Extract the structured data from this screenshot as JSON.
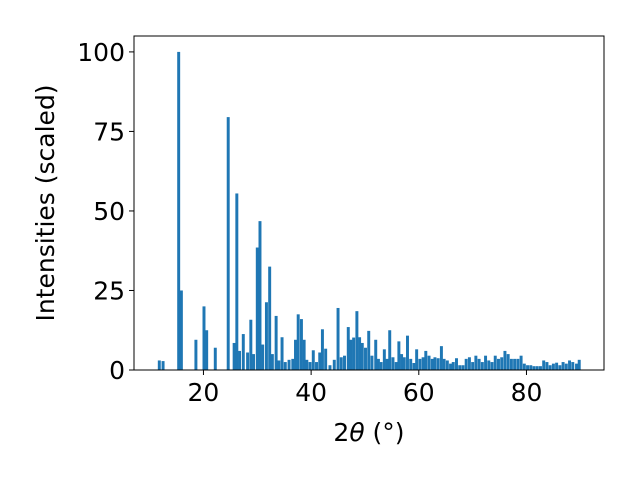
{
  "chart_data": {
    "type": "bar",
    "title": "",
    "xlabel_prefix": "2",
    "xlabel_symbol": "θ",
    "xlabel_unit": " (°)",
    "ylabel": "Intensities (scaled)",
    "xlim": [
      7.1,
      94.4
    ],
    "ylim": [
      0,
      105
    ],
    "xticks": [
      20,
      40,
      60,
      80
    ],
    "yticks": [
      0,
      25,
      50,
      75,
      100
    ],
    "bar_width": 0.55,
    "bar_color": "#1f77b4",
    "grid": false,
    "legend": "none",
    "points": [
      [
        11.8,
        3
      ],
      [
        12.5,
        2.8
      ],
      [
        15.4,
        100
      ],
      [
        15.9,
        25
      ],
      [
        18.6,
        9.5
      ],
      [
        20.1,
        20
      ],
      [
        20.6,
        12.5
      ],
      [
        22.2,
        7
      ],
      [
        24.6,
        79.5
      ],
      [
        25.7,
        8.5
      ],
      [
        26.2,
        55.5
      ],
      [
        26.7,
        6
      ],
      [
        27.4,
        11.3
      ],
      [
        28.2,
        5.5
      ],
      [
        28.8,
        15.8
      ],
      [
        29.3,
        5
      ],
      [
        30.0,
        38.5
      ],
      [
        30.5,
        46.8
      ],
      [
        31.0,
        8
      ],
      [
        31.7,
        21.3
      ],
      [
        32.3,
        32.5
      ],
      [
        32.8,
        5
      ],
      [
        33.5,
        17
      ],
      [
        34.0,
        3
      ],
      [
        34.6,
        10.3
      ],
      [
        35.2,
        2.5
      ],
      [
        35.9,
        3.2
      ],
      [
        36.6,
        3.5
      ],
      [
        37.1,
        9.5
      ],
      [
        37.6,
        17.5
      ],
      [
        38.2,
        16
      ],
      [
        38.7,
        9.5
      ],
      [
        39.2,
        3.2
      ],
      [
        39.8,
        2.5
      ],
      [
        40.4,
        6.2
      ],
      [
        41.0,
        2.5
      ],
      [
        41.6,
        5.5
      ],
      [
        42.1,
        12.8
      ],
      [
        42.7,
        6.7
      ],
      [
        43.5,
        1.5
      ],
      [
        44.3,
        3.2
      ],
      [
        45.0,
        19.5
      ],
      [
        45.6,
        4
      ],
      [
        46.2,
        4.5
      ],
      [
        46.9,
        13.5
      ],
      [
        47.4,
        9.5
      ],
      [
        47.9,
        10.2
      ],
      [
        48.5,
        18.5
      ],
      [
        49.0,
        10.3
      ],
      [
        49.5,
        8.5
      ],
      [
        50.1,
        7
      ],
      [
        50.7,
        12.3
      ],
      [
        51.3,
        4.5
      ],
      [
        52.0,
        9.5
      ],
      [
        52.5,
        3.5
      ],
      [
        53.0,
        2.5
      ],
      [
        53.6,
        6.5
      ],
      [
        54.1,
        3.5
      ],
      [
        54.6,
        12.5
      ],
      [
        55.2,
        4
      ],
      [
        55.8,
        2.5
      ],
      [
        56.3,
        9
      ],
      [
        56.8,
        5
      ],
      [
        57.3,
        4
      ],
      [
        57.9,
        10.8
      ],
      [
        58.5,
        3.5
      ],
      [
        59.1,
        2.2
      ],
      [
        59.6,
        6.5
      ],
      [
        60.2,
        3.5
      ],
      [
        60.8,
        4
      ],
      [
        61.3,
        6
      ],
      [
        61.9,
        4.5
      ],
      [
        62.5,
        3.5
      ],
      [
        63.0,
        4
      ],
      [
        63.6,
        3.7
      ],
      [
        64.2,
        7.5
      ],
      [
        64.7,
        3.5
      ],
      [
        65.3,
        3
      ],
      [
        65.9,
        2
      ],
      [
        66.4,
        2.5
      ],
      [
        67.0,
        3.7
      ],
      [
        67.6,
        1.5
      ],
      [
        68.2,
        1.5
      ],
      [
        68.8,
        3.5
      ],
      [
        69.4,
        4
      ],
      [
        70.0,
        2.5
      ],
      [
        70.6,
        4.5
      ],
      [
        71.2,
        3.5
      ],
      [
        71.8,
        2.5
      ],
      [
        72.4,
        4.5
      ],
      [
        73.0,
        3
      ],
      [
        73.6,
        2.5
      ],
      [
        74.2,
        4.5
      ],
      [
        74.8,
        3.5
      ],
      [
        75.4,
        4
      ],
      [
        76.0,
        6
      ],
      [
        76.6,
        5
      ],
      [
        77.2,
        3.5
      ],
      [
        77.8,
        3.5
      ],
      [
        78.4,
        3.5
      ],
      [
        79.0,
        4.5
      ],
      [
        79.6,
        2
      ],
      [
        80.2,
        1.5
      ],
      [
        80.8,
        1.5
      ],
      [
        81.4,
        1.2
      ],
      [
        82.0,
        1.2
      ],
      [
        82.6,
        1.2
      ],
      [
        83.2,
        3
      ],
      [
        83.8,
        2.5
      ],
      [
        84.4,
        1.5
      ],
      [
        85.0,
        2
      ],
      [
        85.6,
        2.3
      ],
      [
        86.2,
        1.5
      ],
      [
        86.8,
        2.5
      ],
      [
        87.4,
        2
      ],
      [
        88.0,
        3
      ],
      [
        88.6,
        2.5
      ],
      [
        89.3,
        2
      ],
      [
        89.8,
        3.2
      ]
    ]
  }
}
